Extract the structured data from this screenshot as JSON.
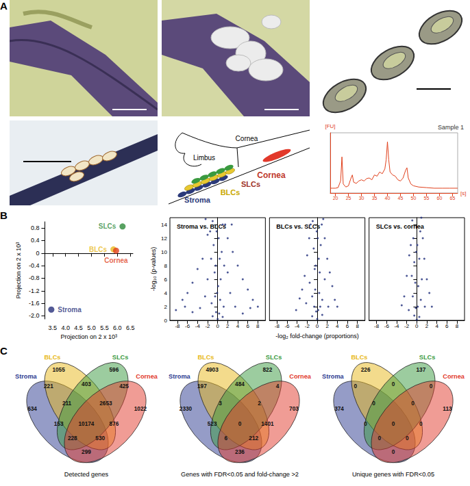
{
  "panel_labels": [
    "A",
    "B",
    "C"
  ],
  "schematic": {
    "labels": [
      {
        "text": "Limbus",
        "color": "#000000"
      },
      {
        "text": "Cornea",
        "color": "#000000"
      },
      {
        "text": "Cornea",
        "color": "#c0392b"
      },
      {
        "text": "SLCs",
        "color": "#a0342a"
      },
      {
        "text": "BLCs",
        "color": "#c9a800"
      },
      {
        "text": "Stroma",
        "color": "#2b3a7a"
      }
    ]
  },
  "chart_data": [
    {
      "type": "line",
      "title": "Sample 1",
      "xlabel": "[s]",
      "ylabel": "[FU]",
      "color": "#e0401c",
      "x": [
        18,
        19,
        20,
        21,
        22,
        22.5,
        23,
        24,
        25,
        26,
        26.5,
        27,
        28,
        29,
        30,
        31,
        32,
        33,
        34,
        35,
        36,
        37,
        38,
        39,
        39.5,
        40,
        40.5,
        41,
        42,
        43,
        44,
        45,
        46,
        47,
        47.5,
        48,
        49,
        50,
        52,
        55,
        58,
        61,
        64,
        67
      ],
      "values": [
        0.08,
        0.08,
        0.08,
        0.09,
        0.2,
        0.6,
        0.15,
        0.1,
        0.12,
        0.25,
        0.3,
        0.18,
        0.16,
        0.2,
        0.22,
        0.2,
        0.24,
        0.25,
        0.22,
        0.3,
        0.28,
        0.35,
        0.32,
        0.4,
        0.55,
        0.85,
        0.55,
        0.35,
        0.3,
        0.28,
        0.22,
        0.2,
        0.25,
        0.38,
        0.42,
        0.25,
        0.15,
        0.12,
        0.1,
        0.09,
        0.08,
        0.08,
        0.08,
        0.08
      ],
      "xlim": [
        18,
        67
      ],
      "xticks": [
        20,
        25,
        30,
        35,
        40,
        45,
        50,
        55,
        60,
        65
      ],
      "ylim": [
        0,
        1
      ],
      "tick_labels": "x"
    },
    {
      "type": "scatter",
      "xlabel": "Projection on 2 x 10³",
      "ylabel": "Projection on 2 x 10³",
      "xlim": [
        3.2,
        6.6
      ],
      "xticks": [
        3.5,
        {
          "value": 4,
          "label": "4.0"
        },
        4.5,
        {
          "value": 5,
          "label": "5.0"
        },
        5.5,
        {
          "value": 6,
          "label": "6.0"
        },
        6.5
      ],
      "ylim": [
        -2.1,
        1.0
      ],
      "yticks": [
        {
          "value": -2,
          "label": "-2.0"
        },
        -1.6,
        -1.2,
        -0.8,
        -0.4,
        0,
        0.4,
        0.8
      ],
      "series": [
        {
          "name": "Stroma",
          "color": "#27307a",
          "x": [
            3.45
          ],
          "values": [
            -1.8
          ]
        },
        {
          "name": "BLCs",
          "color": "#e8b820",
          "x": [
            5.85
          ],
          "values": [
            0.12
          ]
        },
        {
          "name": "Cornea",
          "color": "#e0401c",
          "x": [
            5.95
          ],
          "values": [
            0.08
          ]
        },
        {
          "name": "SLCs",
          "color": "#2e8a3a",
          "x": [
            6.2
          ],
          "values": [
            0.85
          ]
        }
      ]
    },
    {
      "type": "scatter",
      "title": "Stroma vs. BLCs",
      "ylabel": "-log₁₀ (p-values)",
      "color": "#1f2d7a",
      "x": [
        0,
        0.3,
        -0.3,
        0.5,
        -0.5,
        0.6,
        -0.6,
        0.8,
        -0.8,
        1,
        -1,
        0.2,
        -0.2,
        0.4,
        -0.4,
        1.5,
        -1.5,
        2,
        -2,
        3,
        -3,
        4,
        -4,
        5,
        -5,
        6,
        -6,
        7,
        -7,
        8,
        -8.3,
        1.2,
        -1.2,
        2.5,
        -2.5,
        1,
        -1,
        3.5,
        -3.5,
        2,
        -2,
        1.3,
        -1.3,
        5,
        -5,
        0.1,
        -0.1,
        2.8,
        -2.4,
        6.5,
        -6.5
      ],
      "values": [
        0.2,
        1,
        1.2,
        3,
        3.5,
        6,
        7,
        10,
        11,
        14,
        14.5,
        12,
        13,
        9,
        8,
        14,
        13,
        12,
        12.5,
        10,
        9,
        8,
        7.5,
        6,
        5.5,
        4.5,
        4,
        3,
        3,
        2,
        1.5,
        2,
        2.5,
        4,
        3.5,
        0.5,
        0.6,
        2,
        1.8,
        7,
        6,
        8,
        9,
        1,
        1.2,
        5,
        4,
        14,
        14.8,
        1.8,
        2
      ],
      "xlim": [
        -9.5,
        9.5
      ],
      "xticks": [
        -8,
        -6,
        -4,
        -2,
        0,
        2,
        4,
        6,
        8
      ],
      "ylim": [
        0,
        15
      ],
      "yticks": [
        0,
        2,
        4,
        6,
        8,
        10,
        12,
        14
      ]
    },
    {
      "type": "scatter",
      "title": "BLCs vs. SLCs",
      "xlabel": "-log₂ fold-change (proportions)",
      "color": "#1f2d7a",
      "x": [
        0,
        0.2,
        -0.2,
        0.4,
        -0.4,
        0.5,
        -0.5,
        0.7,
        -0.7,
        0.9,
        -0.9,
        1.2,
        -1.3,
        1.5,
        -1.6,
        2,
        -2,
        2.5,
        -2.5,
        3,
        -3,
        3.5,
        -3.5,
        4,
        -4.2,
        1,
        -1,
        1.5,
        -1.5,
        0.3,
        -0.3,
        0.1,
        -0.1,
        2.2,
        -2.2,
        1,
        -1,
        0.6,
        -0.6
      ],
      "values": [
        0.2,
        1.5,
        1.3,
        4,
        4.5,
        7,
        7.5,
        11,
        10.5,
        14,
        14.5,
        14.8,
        14,
        12,
        12,
        9,
        9.5,
        7,
        6.5,
        5,
        4.5,
        3,
        3.2,
        2,
        1.5,
        3,
        3.5,
        6,
        5.5,
        9,
        8,
        12,
        13,
        2,
        2.5,
        0.8,
        0.6,
        2,
        2
      ],
      "xlim": [
        -9.5,
        9.5
      ],
      "xticks": [
        -8,
        -6,
        -4,
        -2,
        0,
        2,
        4,
        6,
        8
      ],
      "ylim": [
        0,
        15
      ],
      "yticks": [
        0,
        2,
        4,
        6,
        8,
        10,
        12,
        14
      ],
      "tick_labels": "x"
    },
    {
      "type": "scatter",
      "title": "SLCs vs. cornea",
      "color": "#1f2d7a",
      "x": [
        0,
        0.2,
        -0.2,
        0.3,
        -0.3,
        0.5,
        -0.5,
        0.7,
        -0.7,
        0.9,
        -0.9,
        1.2,
        -1.2,
        1.5,
        -1.5,
        2,
        -2,
        2.5,
        -2.5,
        3,
        -3,
        0.8,
        -0.8,
        1,
        -1,
        0.1,
        -0.1,
        1.6,
        -1.6,
        0.5,
        -0.5
      ],
      "values": [
        0.1,
        2,
        1.8,
        5,
        5.5,
        9,
        8.5,
        13,
        12,
        15,
        14.6,
        12,
        11,
        9,
        9.5,
        6,
        6.5,
        4,
        3.5,
        2,
        2.2,
        3,
        3.5,
        6,
        6.5,
        11,
        10,
        2,
        1.5,
        0.5,
        0.7
      ],
      "xlim": [
        -9.5,
        9.5
      ],
      "xticks": [
        -8,
        -6,
        -4,
        -2,
        0,
        2,
        4,
        6,
        8
      ],
      "ylim": [
        0,
        15
      ],
      "yticks": [
        0,
        2,
        4,
        6,
        8,
        10,
        12,
        14
      ],
      "tick_labels": "x"
    }
  ],
  "venn": {
    "sets": [
      {
        "name": "Stroma",
        "color": "#2b3990"
      },
      {
        "name": "BLCs",
        "color": "#e8b819"
      },
      {
        "name": "SLCs",
        "color": "#3a9a3f"
      },
      {
        "name": "Cornea",
        "color": "#e2392b"
      }
    ],
    "diagrams": [
      {
        "caption": "Detected genes",
        "regions": [
          {
            "sets": [
              "Stroma"
            ],
            "value": 634
          },
          {
            "sets": [
              "BLCs"
            ],
            "value": 1055
          },
          {
            "sets": [
              "SLCs"
            ],
            "value": 596
          },
          {
            "sets": [
              "Cornea"
            ],
            "value": 1022
          },
          {
            "sets": [
              "Stroma",
              "BLCs"
            ],
            "value": 221
          },
          {
            "sets": [
              "BLCs",
              "SLCs"
            ],
            "value": 403
          },
          {
            "sets": [
              "SLCs",
              "Cornea"
            ],
            "value": 425
          },
          {
            "sets": [
              "Stroma",
              "BLCs",
              "SLCs"
            ],
            "value": 211
          },
          {
            "sets": [
              "BLCs",
              "SLCs",
              "Cornea"
            ],
            "value": 2653
          },
          {
            "sets": [
              "Stroma",
              "SLCs"
            ],
            "value": 153
          },
          {
            "sets": [
              "Stroma",
              "BLCs",
              "SLCs",
              "Cornea"
            ],
            "value": 10174
          },
          {
            "sets": [
              "BLCs",
              "Cornea"
            ],
            "value": 876
          },
          {
            "sets": [
              "Stroma",
              "SLCs",
              "Cornea"
            ],
            "value": 228
          },
          {
            "sets": [
              "Stroma",
              "BLCs",
              "Cornea"
            ],
            "value": 530
          },
          {
            "sets": [
              "Stroma",
              "Cornea"
            ],
            "value": 299
          }
        ]
      },
      {
        "caption": "Genes with FDR<0.05 and fold-change >2",
        "regions": [
          {
            "sets": [
              "Stroma"
            ],
            "value": 2330
          },
          {
            "sets": [
              "BLCs"
            ],
            "value": 4903
          },
          {
            "sets": [
              "SLCs"
            ],
            "value": 822
          },
          {
            "sets": [
              "Cornea"
            ],
            "value": 703
          },
          {
            "sets": [
              "Stroma",
              "BLCs"
            ],
            "value": 197
          },
          {
            "sets": [
              "BLCs",
              "SLCs"
            ],
            "value": 484
          },
          {
            "sets": [
              "SLCs",
              "Cornea"
            ],
            "value": 4
          },
          {
            "sets": [
              "Stroma",
              "BLCs",
              "SLCs"
            ],
            "value": 3
          },
          {
            "sets": [
              "BLCs",
              "SLCs",
              "Cornea"
            ],
            "value": 2
          },
          {
            "sets": [
              "Stroma",
              "SLCs"
            ],
            "value": 523
          },
          {
            "sets": [
              "Stroma",
              "BLCs",
              "SLCs",
              "Cornea"
            ],
            "value": 0
          },
          {
            "sets": [
              "BLCs",
              "Cornea"
            ],
            "value": 1401
          },
          {
            "sets": [
              "Stroma",
              "SLCs",
              "Cornea"
            ],
            "value": 6
          },
          {
            "sets": [
              "Stroma",
              "BLCs",
              "Cornea"
            ],
            "value": 212
          },
          {
            "sets": [
              "Stroma",
              "Cornea"
            ],
            "value": 236
          }
        ]
      },
      {
        "caption": "Unique genes with FDR<0.05",
        "regions": [
          {
            "sets": [
              "Stroma"
            ],
            "value": 374
          },
          {
            "sets": [
              "BLCs"
            ],
            "value": 226
          },
          {
            "sets": [
              "SLCs"
            ],
            "value": 137
          },
          {
            "sets": [
              "Cornea"
            ],
            "value": 113
          },
          {
            "sets": [
              "Stroma",
              "BLCs"
            ],
            "value": 0
          },
          {
            "sets": [
              "BLCs",
              "SLCs"
            ],
            "value": 0
          },
          {
            "sets": [
              "SLCs",
              "Cornea"
            ],
            "value": 0
          },
          {
            "sets": [
              "Stroma",
              "BLCs",
              "SLCs"
            ],
            "value": 0
          },
          {
            "sets": [
              "BLCs",
              "SLCs",
              "Cornea"
            ],
            "value": 0
          },
          {
            "sets": [
              "Stroma",
              "SLCs"
            ],
            "value": 0
          },
          {
            "sets": [
              "Stroma",
              "BLCs",
              "SLCs",
              "Cornea"
            ],
            "value": 0
          },
          {
            "sets": [
              "BLCs",
              "Cornea"
            ],
            "value": 0
          },
          {
            "sets": [
              "Stroma",
              "SLCs",
              "Cornea"
            ],
            "value": 0
          },
          {
            "sets": [
              "Stroma",
              "BLCs",
              "Cornea"
            ],
            "value": 0
          },
          {
            "sets": [
              "Stroma",
              "Cornea"
            ],
            "value": 0
          }
        ]
      }
    ]
  }
}
